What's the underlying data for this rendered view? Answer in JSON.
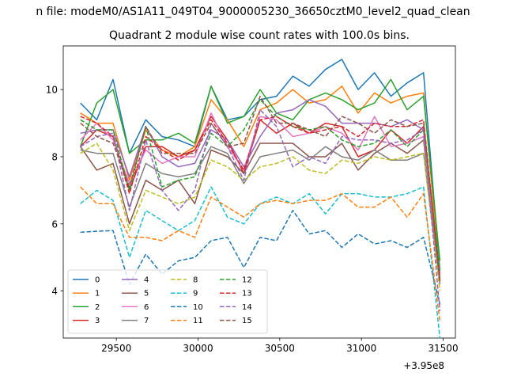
{
  "chart_data": {
    "type": "line",
    "suptitle": "n file: modeM0/AS1A11_049T04_9000005230_36650cztM0_level2_quad_clean",
    "title": "Quadrant 2 module wise count rates with 100.0s bins.",
    "xlabel": "",
    "ylabel": "",
    "x_offset_label": "+3.95e8",
    "xlim": [
      29175,
      31575
    ],
    "ylim": [
      2.6,
      11.3
    ],
    "xticks": [
      29500,
      30000,
      30500,
      31000,
      31500
    ],
    "yticks": [
      4,
      6,
      8,
      10
    ],
    "xtick_labels": [
      "29500",
      "30000",
      "30500",
      "31000",
      "31500"
    ],
    "ytick_labels": [
      "4",
      "6",
      "8",
      "10"
    ],
    "grid": false,
    "legend_position": "lower-left",
    "x": [
      29280,
      29380,
      29480,
      29580,
      29680,
      29780,
      29880,
      29980,
      30080,
      30180,
      30280,
      30380,
      30480,
      30580,
      30680,
      30780,
      30880,
      30980,
      31080,
      31180,
      31280,
      31380,
      31480
    ],
    "series": [
      {
        "name": "0",
        "color": "#1f77b4",
        "dash": "solid",
        "values": [
          9.6,
          9.1,
          10.3,
          8.1,
          9.1,
          8.6,
          8.5,
          8.3,
          10.1,
          9.1,
          9.2,
          9.7,
          9.8,
          10.4,
          10.1,
          10.6,
          10.9,
          10.0,
          10.5,
          9.8,
          10.2,
          10.5,
          4.6
        ]
      },
      {
        "name": "1",
        "color": "#ff7f0e",
        "dash": "solid",
        "values": [
          9.3,
          9.0,
          9.0,
          7.3,
          8.8,
          8.2,
          8.0,
          8.3,
          9.7,
          9.1,
          8.3,
          9.4,
          9.6,
          10.0,
          9.6,
          9.7,
          10.1,
          9.3,
          9.9,
          9.6,
          9.8,
          9.9,
          4.4
        ]
      },
      {
        "name": "2",
        "color": "#2ca02c",
        "dash": "solid",
        "values": [
          8.3,
          9.6,
          10.0,
          8.1,
          8.5,
          8.5,
          8.7,
          8.4,
          10.1,
          9.0,
          9.2,
          10.0,
          9.3,
          9.1,
          9.7,
          9.9,
          9.7,
          9.4,
          9.6,
          10.3,
          9.4,
          9.8,
          4.9
        ]
      },
      {
        "name": "3",
        "color": "#d62728",
        "dash": "solid",
        "values": [
          8.3,
          8.8,
          8.6,
          7.0,
          8.3,
          8.3,
          8.0,
          8.2,
          9.2,
          8.5,
          7.5,
          9.1,
          8.7,
          9.0,
          8.7,
          9.0,
          8.9,
          8.0,
          8.2,
          8.8,
          8.4,
          8.9,
          4.3
        ]
      },
      {
        "name": "4",
        "color": "#9467bd",
        "dash": "solid",
        "values": [
          8.7,
          8.8,
          8.8,
          7.4,
          8.9,
          8.0,
          7.7,
          7.8,
          8.8,
          8.5,
          7.7,
          8.6,
          9.3,
          9.4,
          9.7,
          9.5,
          9.0,
          9.0,
          9.0,
          8.9,
          9.1,
          8.8,
          4.5
        ]
      },
      {
        "name": "5",
        "color": "#8c564b",
        "dash": "solid",
        "values": [
          8.3,
          7.6,
          7.8,
          6.0,
          7.3,
          7.0,
          7.3,
          6.6,
          8.2,
          8.0,
          7.5,
          8.4,
          8.4,
          8.4,
          8.0,
          8.0,
          8.4,
          7.6,
          8.1,
          8.4,
          8.1,
          8.5,
          4.2
        ]
      },
      {
        "name": "6",
        "color": "#e377c2",
        "dash": "solid",
        "values": [
          8.5,
          9.0,
          8.5,
          7.2,
          8.2,
          7.8,
          8.0,
          8.0,
          9.3,
          8.3,
          7.6,
          9.2,
          9.1,
          8.6,
          8.7,
          8.9,
          8.7,
          8.2,
          9.2,
          8.3,
          8.4,
          8.6,
          4.4
        ]
      },
      {
        "name": "7",
        "color": "#7f7f7f",
        "dash": "solid",
        "values": [
          8.2,
          8.1,
          8.1,
          6.5,
          7.8,
          7.5,
          7.4,
          7.5,
          8.3,
          8.1,
          7.2,
          8.0,
          8.1,
          8.2,
          7.9,
          8.3,
          8.0,
          7.9,
          8.2,
          7.9,
          7.9,
          8.1,
          4.2
        ]
      },
      {
        "name": "8",
        "color": "#bcbd22",
        "dash": "dashed",
        "values": [
          8.1,
          8.4,
          7.6,
          5.8,
          7.0,
          6.8,
          6.6,
          6.8,
          7.9,
          7.7,
          7.3,
          7.7,
          7.8,
          8.0,
          7.6,
          7.5,
          7.9,
          7.8,
          8.0,
          7.9,
          8.0,
          8.1,
          4.0
        ]
      },
      {
        "name": "9",
        "color": "#17becf",
        "dash": "dashed",
        "values": [
          6.6,
          7.0,
          6.7,
          5.0,
          6.4,
          6.1,
          5.8,
          6.1,
          7.1,
          6.2,
          6.0,
          6.6,
          6.8,
          6.6,
          6.9,
          6.3,
          6.9,
          6.9,
          6.8,
          6.8,
          6.9,
          7.1,
          2.6
        ]
      },
      {
        "name": "10",
        "color": "#1f77b4",
        "dash": "dashed",
        "values": [
          5.75,
          5.78,
          5.8,
          4.2,
          5.1,
          4.5,
          4.9,
          5.0,
          5.5,
          5.6,
          4.7,
          5.6,
          5.5,
          6.4,
          5.7,
          5.8,
          5.3,
          5.7,
          5.4,
          5.5,
          5.3,
          5.6,
          3.6
        ]
      },
      {
        "name": "11",
        "color": "#ff7f0e",
        "dash": "dashed",
        "values": [
          7.1,
          6.6,
          6.6,
          5.6,
          5.6,
          5.5,
          5.8,
          5.6,
          6.8,
          6.5,
          6.2,
          6.6,
          6.7,
          6.6,
          6.7,
          6.7,
          6.9,
          6.5,
          6.5,
          6.8,
          6.2,
          6.9,
          3.1
        ]
      },
      {
        "name": "12",
        "color": "#2ca02c",
        "dash": "dashed",
        "values": [
          9.1,
          8.8,
          8.8,
          7.0,
          8.9,
          7.1,
          7.3,
          7.4,
          8.7,
          8.3,
          8.8,
          9.7,
          9.2,
          8.9,
          8.8,
          8.9,
          8.5,
          8.3,
          8.4,
          8.8,
          8.3,
          8.8,
          4.6
        ]
      },
      {
        "name": "13",
        "color": "#d62728",
        "dash": "dashed",
        "values": [
          9.2,
          9.0,
          8.6,
          6.9,
          8.6,
          8.2,
          7.9,
          8.2,
          9.1,
          8.4,
          7.6,
          9.1,
          9.2,
          8.9,
          8.7,
          8.8,
          8.9,
          8.6,
          9.0,
          8.9,
          8.9,
          9.1,
          4.3
        ]
      },
      {
        "name": "14",
        "color": "#9467bd",
        "dash": "dashed",
        "values": [
          8.3,
          8.6,
          8.7,
          6.4,
          8.5,
          7.0,
          6.4,
          7.0,
          9.0,
          8.3,
          7.3,
          9.4,
          8.9,
          7.7,
          8.0,
          7.8,
          8.6,
          8.5,
          8.5,
          8.4,
          8.5,
          8.8,
          3.4
        ]
      },
      {
        "name": "15",
        "color": "#8c564b",
        "dash": "dashed",
        "values": [
          9.0,
          8.6,
          8.4,
          7.1,
          8.9,
          8.1,
          8.1,
          8.1,
          9.0,
          8.3,
          8.4,
          9.8,
          9.0,
          9.0,
          8.8,
          8.6,
          9.2,
          9.0,
          8.7,
          9.1,
          8.9,
          9.0,
          4.3
        ]
      }
    ]
  }
}
